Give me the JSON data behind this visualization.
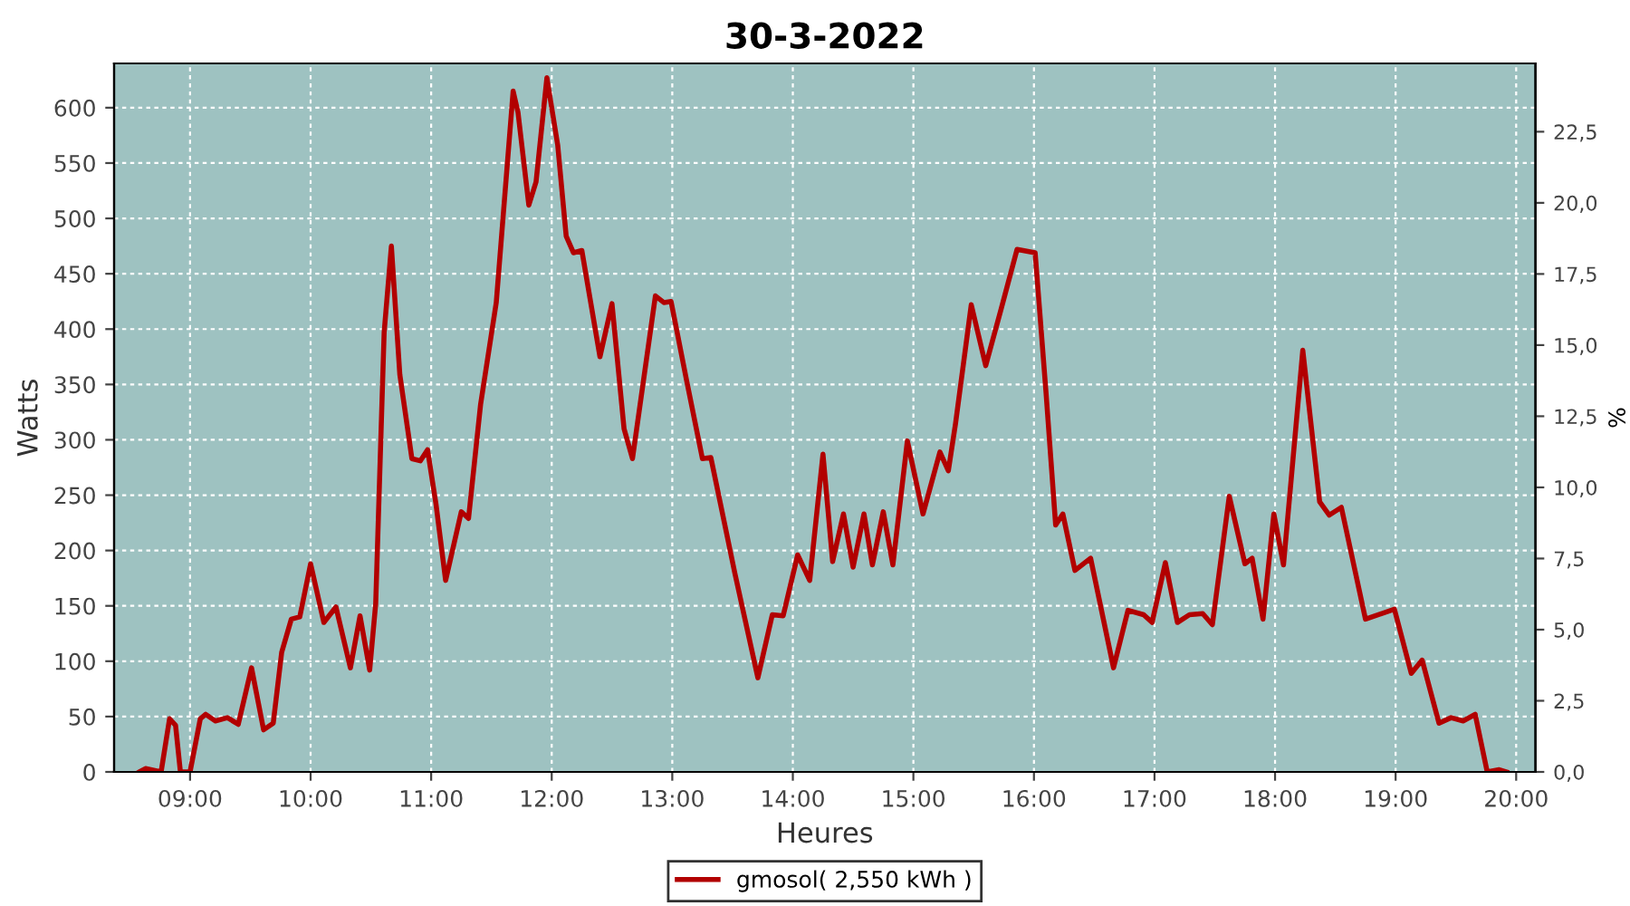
{
  "chart_data": {
    "type": "line",
    "title": "30-3-2022",
    "xlabel": "Heures",
    "ylabel": "Watts",
    "y2label": "%",
    "xlim": [
      8.37,
      20.16
    ],
    "ylim": [
      0,
      640
    ],
    "y2lim": [
      0,
      24.9
    ],
    "xticks": [
      {
        "value": 9,
        "label": "09:00"
      },
      {
        "value": 10,
        "label": "10:00"
      },
      {
        "value": 11,
        "label": "11:00"
      },
      {
        "value": 12,
        "label": "12:00"
      },
      {
        "value": 13,
        "label": "13:00"
      },
      {
        "value": 14,
        "label": "14:00"
      },
      {
        "value": 15,
        "label": "15:00"
      },
      {
        "value": 16,
        "label": "16:00"
      },
      {
        "value": 17,
        "label": "17:00"
      },
      {
        "value": 18,
        "label": "18:00"
      },
      {
        "value": 19,
        "label": "19:00"
      },
      {
        "value": 20,
        "label": "20:00"
      }
    ],
    "yticks": [
      0,
      50,
      100,
      150,
      200,
      250,
      300,
      350,
      400,
      450,
      500,
      550,
      600
    ],
    "y2ticks": [
      {
        "value": 0,
        "label": "0,0"
      },
      {
        "value": 2.5,
        "label": "2,5"
      },
      {
        "value": 5,
        "label": "5,0"
      },
      {
        "value": 7.5,
        "label": "7,5"
      },
      {
        "value": 10,
        "label": "10,0"
      },
      {
        "value": 12.5,
        "label": "12,5"
      },
      {
        "value": 15,
        "label": "15,0"
      },
      {
        "value": 17.5,
        "label": "17,5"
      },
      {
        "value": 20,
        "label": "20,0"
      },
      {
        "value": 22.5,
        "label": "22,5"
      }
    ],
    "grid": true,
    "legend": "bottom",
    "line_style": "solid",
    "marker": "none",
    "series": [
      {
        "name": "gmosol( 2,550 kWh )",
        "color": "#b20000",
        "x": [
          8.58,
          8.63,
          8.76,
          8.83,
          8.88,
          8.92,
          9.0,
          9.085,
          9.13,
          9.21,
          9.31,
          9.4,
          9.51,
          9.61,
          9.69,
          9.76,
          9.84,
          9.91,
          10.0,
          10.11,
          10.21,
          10.33,
          10.41,
          10.49,
          10.54,
          10.61,
          10.67,
          10.74,
          10.84,
          10.91,
          10.97,
          11.04,
          11.12,
          11.25,
          11.31,
          11.41,
          11.54,
          11.68,
          11.72,
          11.81,
          11.87,
          11.96,
          12.05,
          12.12,
          12.18,
          12.25,
          12.4,
          12.5,
          12.6,
          12.67,
          12.86,
          12.93,
          12.99,
          13.12,
          13.25,
          13.32,
          13.52,
          13.71,
          13.83,
          13.92,
          14.04,
          14.14,
          14.25,
          14.33,
          14.42,
          14.5,
          14.59,
          14.66,
          14.75,
          14.83,
          14.95,
          15.08,
          15.22,
          15.29,
          15.35,
          15.48,
          15.6,
          15.73,
          15.86,
          16.01,
          16.1,
          16.18,
          16.24,
          16.34,
          16.47,
          16.66,
          16.78,
          16.91,
          16.98,
          17.09,
          17.19,
          17.29,
          17.4,
          17.48,
          17.62,
          17.75,
          17.81,
          17.9,
          17.99,
          18.07,
          18.23,
          18.37,
          18.45,
          18.55,
          18.75,
          18.99,
          19.13,
          19.22,
          19.36,
          19.46,
          19.56,
          19.66,
          19.76,
          19.86,
          19.92
        ],
        "values": [
          0,
          3,
          0,
          48,
          42,
          0,
          0,
          48,
          52,
          46,
          49,
          43,
          94,
          38,
          44,
          108,
          138,
          140,
          188,
          135,
          149,
          94,
          141,
          92,
          152,
          397,
          475,
          359,
          283,
          281,
          291,
          242,
          173,
          235,
          229,
          332,
          424,
          615,
          596,
          512,
          533,
          627,
          566,
          484,
          469,
          471,
          375,
          423,
          310,
          283,
          430,
          424,
          425,
          353,
          283,
          284,
          179,
          85,
          142,
          141,
          196,
          173,
          287,
          190,
          233,
          185,
          233,
          187,
          235,
          187,
          299,
          233,
          289,
          272,
          315,
          422,
          367,
          419,
          472,
          469,
          343,
          223,
          233,
          182,
          193,
          94,
          146,
          142,
          135,
          189,
          135,
          142,
          143,
          133,
          249,
          188,
          193,
          138,
          233,
          187,
          381,
          244,
          232,
          239,
          138,
          147,
          89,
          101,
          44,
          49,
          46,
          52,
          0,
          2,
          0
        ]
      }
    ]
  }
}
